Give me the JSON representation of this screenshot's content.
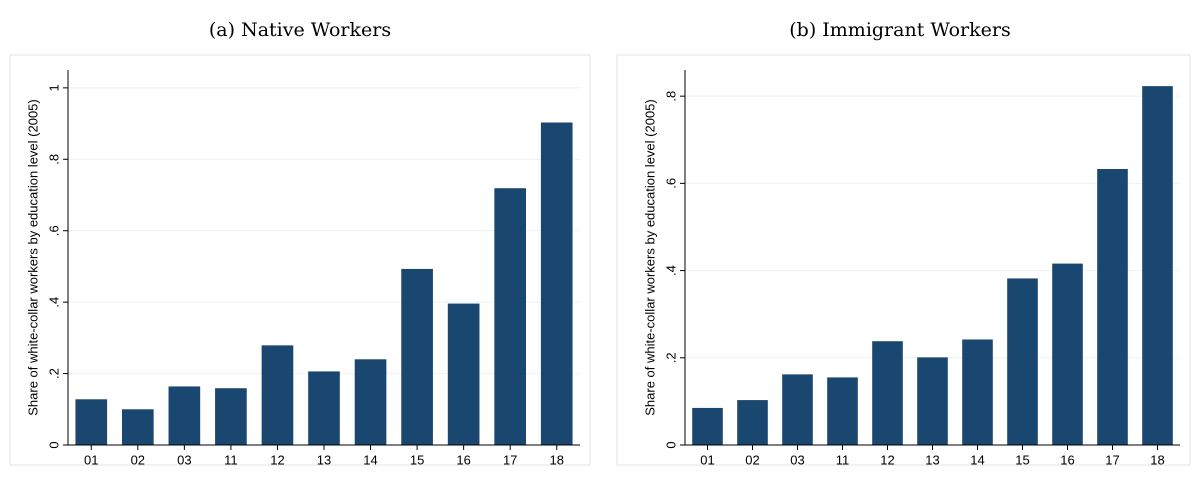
{
  "chart_data": [
    {
      "type": "bar",
      "title": "(a) Native Workers",
      "y_label": "Share of white-collar workers by education level (2005)",
      "categories": [
        "01",
        "02",
        "03",
        "11",
        "12",
        "13",
        "14",
        "15",
        "16",
        "17",
        "18"
      ],
      "values": [
        0.128,
        0.1,
        0.164,
        0.159,
        0.279,
        0.206,
        0.24,
        0.493,
        0.396,
        0.719,
        0.903
      ],
      "color": "#1a476f",
      "ylim": [
        0,
        1.05
      ],
      "yticks": [
        0,
        {
          "value": 0.2,
          "label": ".2"
        },
        {
          "value": 0.4,
          "label": ".4"
        },
        {
          "value": 0.6,
          "label": ".6"
        },
        {
          "value": 0.8,
          "label": ".8"
        },
        1
      ],
      "grid": true
    },
    {
      "type": "bar",
      "title": "(b) Immigrant Workers",
      "y_label": "Share of white-collar workers by education level (2005)",
      "categories": [
        "01",
        "02",
        "03",
        "11",
        "12",
        "13",
        "14",
        "15",
        "16",
        "17",
        "18"
      ],
      "values": [
        0.085,
        0.103,
        0.162,
        0.155,
        0.238,
        0.201,
        0.242,
        0.382,
        0.416,
        0.633,
        0.823
      ],
      "color": "#1a476f",
      "ylim": [
        0,
        0.86
      ],
      "yticks": [
        0,
        {
          "value": 0.2,
          "label": ".2"
        },
        {
          "value": 0.4,
          "label": ".4"
        },
        {
          "value": 0.6,
          "label": ".6"
        },
        {
          "value": 0.8,
          "label": ".8"
        }
      ],
      "grid": true
    }
  ]
}
